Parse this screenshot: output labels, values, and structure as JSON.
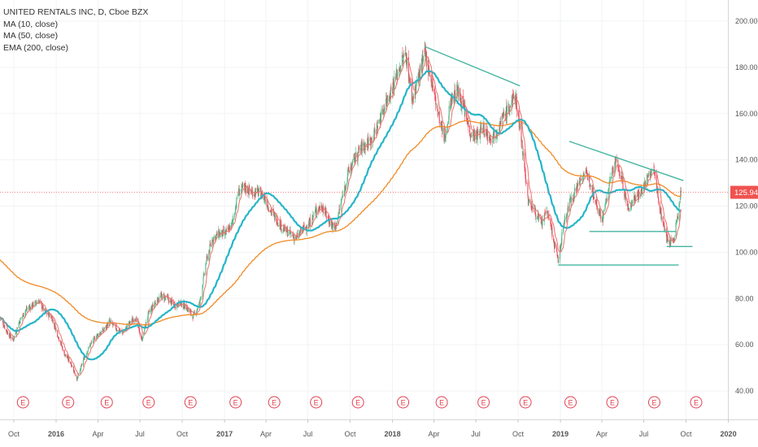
{
  "legend": {
    "title": "UNITED RENTALS INC, D, Cboe BZX",
    "ma10": "MA (10, close)",
    "ma50": "MA (50, close)",
    "ema200": "EMA (200, close)"
  },
  "colors": {
    "up": "#53b987",
    "down": "#eb4d5c",
    "ma10": "#e8726c",
    "ma50": "#26b5c8",
    "ema200": "#f08a24",
    "trendline": "#45b5a0",
    "last_price": "#ef5350",
    "earnings": "#e04050"
  },
  "chart_data": {
    "type": "line",
    "description_source": "daily candlesticks with moving averages",
    "x_start": "2015-09-01",
    "x_end": "2019-12-31",
    "ylim": [
      25,
      205
    ],
    "y_ticks": [
      40,
      60,
      80,
      100,
      120,
      140,
      160,
      180,
      200
    ],
    "y_tick_labels": [
      "40.00",
      "60.00",
      "80.00",
      "100.00",
      "120.00",
      "140.00",
      "160.00",
      "180.00",
      "200.00"
    ],
    "x_ticks": [
      {
        "date": "2015-10-01",
        "label": "Oct",
        "bold": false
      },
      {
        "date": "2016-01-01",
        "label": "2016",
        "bold": true
      },
      {
        "date": "2016-04-01",
        "label": "Apr",
        "bold": false
      },
      {
        "date": "2016-07-01",
        "label": "Jul",
        "bold": false
      },
      {
        "date": "2016-10-01",
        "label": "Oct",
        "bold": false
      },
      {
        "date": "2017-01-01",
        "label": "2017",
        "bold": true
      },
      {
        "date": "2017-04-01",
        "label": "Apr",
        "bold": false
      },
      {
        "date": "2017-07-01",
        "label": "Jul",
        "bold": false
      },
      {
        "date": "2017-10-01",
        "label": "Oct",
        "bold": false
      },
      {
        "date": "2018-01-01",
        "label": "2018",
        "bold": true
      },
      {
        "date": "2018-04-01",
        "label": "Apr",
        "bold": false
      },
      {
        "date": "2018-07-01",
        "label": "Jul",
        "bold": false
      },
      {
        "date": "2018-10-01",
        "label": "Oct",
        "bold": false
      },
      {
        "date": "2019-01-01",
        "label": "2019",
        "bold": true
      },
      {
        "date": "2019-04-01",
        "label": "Apr",
        "bold": false
      },
      {
        "date": "2019-07-01",
        "label": "Jul",
        "bold": false
      },
      {
        "date": "2019-10-01",
        "label": "Oct",
        "bold": false
      },
      {
        "date": "2020-01-01",
        "label": "2020",
        "bold": true
      }
    ],
    "last_price": 125.94,
    "last_price_label": "125.94",
    "price_path": [
      [
        "2015-09-01",
        72
      ],
      [
        "2015-09-15",
        66
      ],
      [
        "2015-09-29",
        62
      ],
      [
        "2015-10-13",
        70
      ],
      [
        "2015-10-27",
        75
      ],
      [
        "2015-11-10",
        77
      ],
      [
        "2015-11-24",
        79
      ],
      [
        "2015-12-08",
        74
      ],
      [
        "2015-12-22",
        72
      ],
      [
        "2016-01-05",
        64
      ],
      [
        "2016-01-19",
        56
      ],
      [
        "2016-02-02",
        52
      ],
      [
        "2016-02-16",
        45
      ],
      [
        "2016-03-01",
        54
      ],
      [
        "2016-03-15",
        60
      ],
      [
        "2016-03-29",
        64
      ],
      [
        "2016-04-12",
        66
      ],
      [
        "2016-04-26",
        70
      ],
      [
        "2016-05-10",
        67
      ],
      [
        "2016-05-24",
        65
      ],
      [
        "2016-06-07",
        69
      ],
      [
        "2016-06-21",
        72
      ],
      [
        "2016-07-05",
        62
      ],
      [
        "2016-07-19",
        73
      ],
      [
        "2016-08-02",
        78
      ],
      [
        "2016-08-16",
        81
      ],
      [
        "2016-08-30",
        80
      ],
      [
        "2016-09-13",
        77
      ],
      [
        "2016-09-27",
        78
      ],
      [
        "2016-10-11",
        76
      ],
      [
        "2016-10-25",
        72
      ],
      [
        "2016-11-08",
        78
      ],
      [
        "2016-11-22",
        96
      ],
      [
        "2016-12-06",
        106
      ],
      [
        "2016-12-20",
        108
      ],
      [
        "2017-01-03",
        108
      ],
      [
        "2017-01-17",
        112
      ],
      [
        "2017-01-31",
        126
      ],
      [
        "2017-02-14",
        128
      ],
      [
        "2017-02-28",
        126
      ],
      [
        "2017-03-14",
        126
      ],
      [
        "2017-03-28",
        124
      ],
      [
        "2017-04-11",
        118
      ],
      [
        "2017-04-25",
        114
      ],
      [
        "2017-05-09",
        110
      ],
      [
        "2017-05-23",
        108
      ],
      [
        "2017-06-06",
        106
      ],
      [
        "2017-06-20",
        110
      ],
      [
        "2017-07-04",
        112
      ],
      [
        "2017-07-18",
        118
      ],
      [
        "2017-08-01",
        120
      ],
      [
        "2017-08-15",
        114
      ],
      [
        "2017-08-29",
        110
      ],
      [
        "2017-09-12",
        122
      ],
      [
        "2017-09-26",
        134
      ],
      [
        "2017-10-10",
        140
      ],
      [
        "2017-10-24",
        145
      ],
      [
        "2017-11-07",
        147
      ],
      [
        "2017-11-21",
        150
      ],
      [
        "2017-12-05",
        158
      ],
      [
        "2017-12-19",
        166
      ],
      [
        "2018-01-02",
        172
      ],
      [
        "2018-01-16",
        180
      ],
      [
        "2018-01-30",
        186
      ],
      [
        "2018-02-13",
        166
      ],
      [
        "2018-02-27",
        176
      ],
      [
        "2018-03-13",
        186
      ],
      [
        "2018-03-27",
        174
      ],
      [
        "2018-04-10",
        160
      ],
      [
        "2018-04-24",
        148
      ],
      [
        "2018-05-08",
        166
      ],
      [
        "2018-05-22",
        170
      ],
      [
        "2018-06-05",
        162
      ],
      [
        "2018-06-19",
        152
      ],
      [
        "2018-07-03",
        150
      ],
      [
        "2018-07-17",
        154
      ],
      [
        "2018-07-31",
        150
      ],
      [
        "2018-08-14",
        152
      ],
      [
        "2018-08-28",
        158
      ],
      [
        "2018-09-11",
        162
      ],
      [
        "2018-09-25",
        168
      ],
      [
        "2018-10-09",
        148
      ],
      [
        "2018-10-23",
        122
      ],
      [
        "2018-11-06",
        118
      ],
      [
        "2018-11-20",
        112
      ],
      [
        "2018-12-04",
        118
      ],
      [
        "2018-12-18",
        104
      ],
      [
        "2018-12-27",
        96
      ],
      [
        "2019-01-08",
        112
      ],
      [
        "2019-01-22",
        122
      ],
      [
        "2019-02-05",
        128
      ],
      [
        "2019-02-19",
        134
      ],
      [
        "2019-03-05",
        132
      ],
      [
        "2019-03-19",
        122
      ],
      [
        "2019-04-02",
        114
      ],
      [
        "2019-04-16",
        128
      ],
      [
        "2019-04-30",
        140
      ],
      [
        "2019-05-14",
        132
      ],
      [
        "2019-05-28",
        118
      ],
      [
        "2019-06-11",
        124
      ],
      [
        "2019-06-25",
        126
      ],
      [
        "2019-07-09",
        132
      ],
      [
        "2019-07-23",
        136
      ],
      [
        "2019-08-06",
        118
      ],
      [
        "2019-08-20",
        106
      ],
      [
        "2019-09-03",
        104
      ],
      [
        "2019-09-13",
        116
      ],
      [
        "2019-09-20",
        126
      ]
    ],
    "trendlines": [
      {
        "from": [
          "2018-03-12",
          189
        ],
        "to": [
          "2018-10-05",
          172
        ]
      },
      {
        "from": [
          "2019-01-20",
          148
        ],
        "to": [
          "2019-09-25",
          131
        ]
      },
      {
        "from": [
          "2019-03-05",
          109
        ],
        "to": [
          "2019-09-10",
          109
        ]
      },
      {
        "from": [
          "2019-08-20",
          102.5
        ],
        "to": [
          "2019-10-15",
          102.5
        ]
      },
      {
        "from": [
          "2018-12-27",
          94.5
        ],
        "to": [
          "2019-09-15",
          94.5
        ]
      }
    ],
    "earnings": [
      "2015-10-21",
      "2016-01-27",
      "2016-04-20",
      "2016-07-20",
      "2016-10-19",
      "2017-01-25",
      "2017-04-19",
      "2017-07-19",
      "2017-10-18",
      "2018-01-24",
      "2018-04-18",
      "2018-07-18",
      "2018-10-17",
      "2019-01-23",
      "2019-04-24",
      "2019-07-24",
      "2019-10-23"
    ],
    "earnings_label": "E"
  }
}
